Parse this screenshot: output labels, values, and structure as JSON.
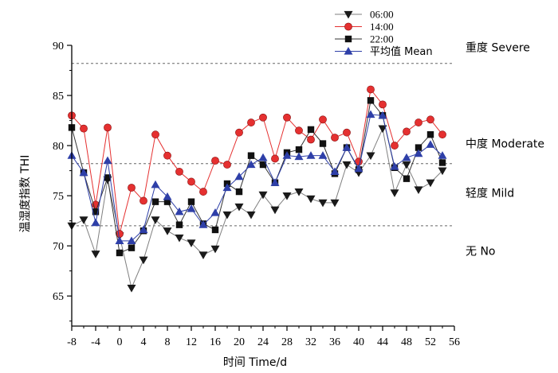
{
  "chart_data": {
    "type": "line",
    "xlabel": "时间 Time/d",
    "ylabel": "温湿度指数 THI",
    "xlim": [
      -8,
      56
    ],
    "ylim": [
      62,
      90
    ],
    "x_ticks": [
      -8,
      -4,
      0,
      4,
      8,
      12,
      16,
      20,
      24,
      28,
      32,
      36,
      40,
      44,
      48,
      52,
      56
    ],
    "y_ticks": [
      65,
      70,
      75,
      80,
      85,
      90
    ],
    "x": [
      -8,
      -6,
      -4,
      -2,
      0,
      2,
      4,
      6,
      8,
      10,
      12,
      14,
      16,
      18,
      20,
      22,
      24,
      26,
      28,
      30,
      32,
      34,
      36,
      38,
      40,
      42,
      44,
      46,
      48,
      50,
      52,
      54
    ],
    "series": [
      {
        "name": "06:00",
        "color": "#1a1a1a",
        "line_color": "#7f7f7f",
        "marker": "triangle-down",
        "values": [
          72.0,
          72.6,
          69.2,
          76.6,
          71.0,
          65.8,
          68.6,
          72.6,
          71.5,
          70.8,
          70.3,
          69.1,
          69.7,
          73.1,
          73.9,
          73.1,
          75.1,
          73.6,
          75.0,
          75.4,
          74.7,
          74.3,
          74.3,
          78.1,
          77.3,
          79.0,
          81.7,
          75.3,
          78.1,
          75.6,
          76.3,
          77.5
        ]
      },
      {
        "name": "14:00",
        "color": "#e53030",
        "line_color": "#e53030",
        "marker": "circle",
        "values": [
          83.0,
          81.7,
          74.1,
          81.8,
          71.2,
          75.8,
          74.5,
          81.1,
          79.0,
          77.4,
          76.4,
          75.4,
          78.5,
          78.1,
          81.3,
          82.3,
          82.8,
          78.7,
          82.8,
          81.5,
          80.6,
          82.6,
          80.8,
          81.3,
          78.4,
          85.6,
          84.1,
          80.0,
          81.4,
          82.3,
          82.6,
          81.1
        ]
      },
      {
        "name": "22:00",
        "color": "#111111",
        "line_color": "#333333",
        "marker": "square",
        "values": [
          81.8,
          77.3,
          73.4,
          76.8,
          69.3,
          69.8,
          71.5,
          74.4,
          74.4,
          72.1,
          74.4,
          72.2,
          71.6,
          76.2,
          75.4,
          79.0,
          78.1,
          76.3,
          79.3,
          79.6,
          81.6,
          80.2,
          77.2,
          79.8,
          77.6,
          84.5,
          83.0,
          77.8,
          76.7,
          79.8,
          81.1,
          78.3
        ]
      },
      {
        "name": "平均值 Mean",
        "color": "#2e3fa8",
        "line_color": "#2e3fa8",
        "marker": "triangle-up",
        "values": [
          79.0,
          77.3,
          72.3,
          78.5,
          70.5,
          70.5,
          71.6,
          76.1,
          74.9,
          73.4,
          73.7,
          72.1,
          73.3,
          75.8,
          76.9,
          78.1,
          78.8,
          76.3,
          79.0,
          78.9,
          79.0,
          79.0,
          77.4,
          79.8,
          77.7,
          83.1,
          83.0,
          77.9,
          78.8,
          79.2,
          80.1,
          79.0
        ]
      }
    ],
    "thresholds": [
      {
        "value": 72,
        "label": "无 No"
      },
      {
        "value": 78.2,
        "label": "轻度 Mild"
      },
      {
        "value": 88.2,
        "label": "重度 Severe"
      }
    ],
    "zone_labels": [
      {
        "text": "重度 Severe",
        "level": 89.8
      },
      {
        "text": "中度 Moderate",
        "level": 80.2
      },
      {
        "text": "轻度 Mild",
        "level": 75.3
      },
      {
        "text": "无 No",
        "level": 69.5
      }
    ],
    "legend_position": "top-right",
    "grid": false
  }
}
